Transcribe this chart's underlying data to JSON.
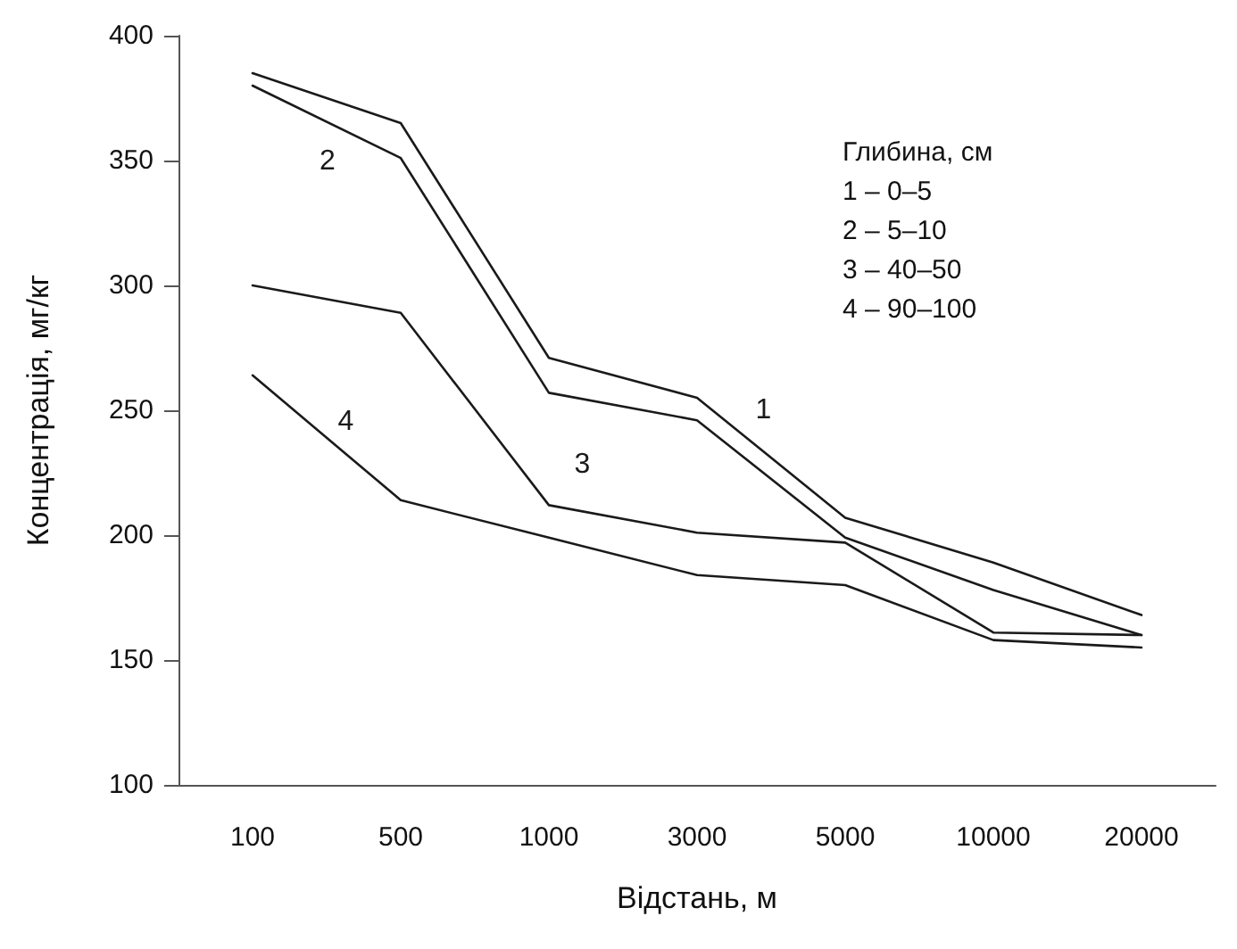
{
  "chart_data": {
    "type": "line",
    "xlabel": "Відстань, м",
    "ylabel": "Концентрація, мг/кг",
    "legend_title": "Глибина, см",
    "annotations": [
      "1 – 0–5",
      "2 – 5–10",
      "3 – 40–50",
      "4 – 90–100"
    ],
    "categories": [
      "100",
      "500",
      "1000",
      "3000",
      "5000",
      "10000",
      "20000"
    ],
    "series": [
      {
        "name": "1",
        "color": "#1a1a1a",
        "values": [
          385,
          365,
          271,
          255,
          207,
          189,
          168
        ]
      },
      {
        "name": "2",
        "color": "#1a1a1a",
        "values": [
          380,
          351,
          257,
          246,
          199,
          178,
          160
        ]
      },
      {
        "name": "3",
        "color": "#1a1a1a",
        "values": [
          300,
          289,
          212,
          201,
          197,
          161,
          160
        ]
      },
      {
        "name": "4",
        "color": "#1a1a1a",
        "values": [
          264,
          214,
          199,
          184,
          180,
          158,
          155
        ]
      }
    ],
    "ylim": [
      100,
      400
    ],
    "yticks": [
      100,
      150,
      200,
      250,
      300,
      350,
      400
    ],
    "grid": false,
    "marker": "none",
    "line_style": "solid"
  }
}
